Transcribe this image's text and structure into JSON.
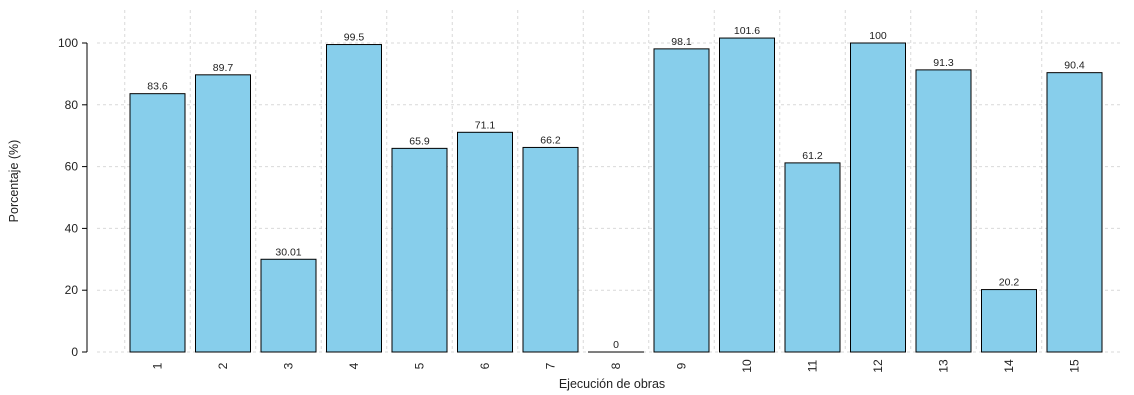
{
  "chart_data": {
    "type": "bar",
    "categories": [
      "1",
      "2",
      "3",
      "4",
      "5",
      "6",
      "7",
      "8",
      "9",
      "10",
      "11",
      "12",
      "13",
      "14",
      "15"
    ],
    "values": [
      83.6,
      89.7,
      30.01,
      99.5,
      65.9,
      71.1,
      66.2,
      0,
      98.1,
      101.6,
      61.2,
      100,
      91.3,
      20.2,
      90.4
    ],
    "value_labels": [
      "83.6",
      "89.7",
      "30.01",
      "99.5",
      "65.9",
      "71.1",
      "66.2",
      "0",
      "98.1",
      "101.6",
      "61.2",
      "100",
      "91.3",
      "20.2",
      "90.4"
    ],
    "title": "",
    "xlabel": "Ejecución de obras",
    "ylabel": "Porcentaje (%)",
    "ylim": [
      0,
      110
    ],
    "yticks": [
      0,
      20,
      40,
      60,
      80,
      100
    ],
    "grid": true,
    "bar_color": "#87ceeb",
    "bar_edge_color": "#000000"
  }
}
